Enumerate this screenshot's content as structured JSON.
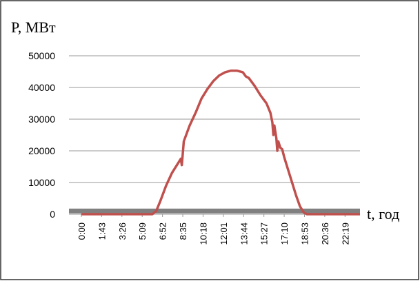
{
  "chart_data": {
    "type": "line",
    "ylabel": "P, МВт",
    "xlabel": "t, год",
    "xlim": [
      -63,
      1415
    ],
    "ylim": [
      0,
      50000
    ],
    "yticks": [
      0,
      10000,
      20000,
      30000,
      40000,
      50000
    ],
    "xticks": [
      {
        "value": 0,
        "label": "0:00"
      },
      {
        "value": 103,
        "label": "1:43"
      },
      {
        "value": 206,
        "label": "3:26"
      },
      {
        "value": 309,
        "label": "5:09"
      },
      {
        "value": 412,
        "label": "6:52"
      },
      {
        "value": 515,
        "label": "8:35"
      },
      {
        "value": 618,
        "label": "10:18"
      },
      {
        "value": 721,
        "label": "12:01"
      },
      {
        "value": 824,
        "label": "13:44"
      },
      {
        "value": 927,
        "label": "15:27"
      },
      {
        "value": 1030,
        "label": "17:10"
      },
      {
        "value": 1133,
        "label": "18:53"
      },
      {
        "value": 1236,
        "label": "20:36"
      },
      {
        "value": 1339,
        "label": "22:19"
      }
    ],
    "grid": true,
    "series": [
      {
        "color": "#808080",
        "x": [
          -63,
          1415
        ],
        "values": [
          1000,
          1000
        ]
      },
      {
        "color": "#c0504d",
        "x": [
          0,
          120,
          240,
          360,
          380,
          400,
          430,
          460,
          490,
          505,
          510,
          515,
          520,
          550,
          580,
          610,
          640,
          670,
          700,
          730,
          760,
          790,
          820,
          835,
          850,
          880,
          910,
          940,
          960,
          970,
          975,
          980,
          990,
          995,
          1000,
          1010,
          1020,
          1030,
          1050,
          1070,
          1090,
          1110,
          1130,
          1145,
          1250,
          1415
        ],
        "values": [
          0,
          0,
          0,
          0,
          1000,
          4000,
          9000,
          13000,
          16000,
          17500,
          15500,
          19000,
          23000,
          28000,
          32000,
          36500,
          39500,
          42000,
          43800,
          44800,
          45300,
          45300,
          44800,
          43500,
          43000,
          40500,
          37500,
          35000,
          32000,
          29000,
          25000,
          28000,
          24000,
          20000,
          23000,
          21000,
          20500,
          18000,
          14000,
          10000,
          6000,
          2500,
          500,
          0,
          0,
          0
        ]
      }
    ]
  }
}
